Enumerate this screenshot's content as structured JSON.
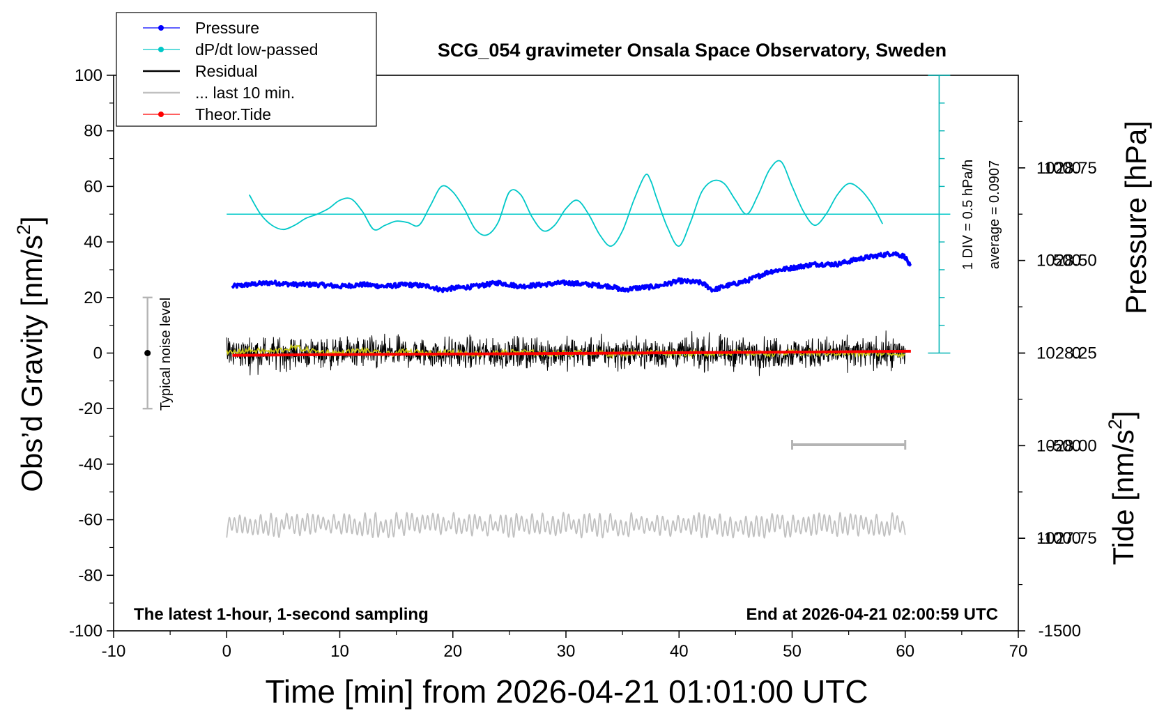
{
  "chart_data": {
    "type": "line",
    "title": "SCG_054 gravimeter Onsala Space Observatory, Sweden",
    "xlabel": "Time [min] from 2026-04-21 01:01:00 UTC",
    "ylabel_left_main": "Obs’d Gravity [nm/s",
    "ylabel_left_sup": "2",
    "ylabel_left_end": "]",
    "ylabel_right_pressure": "Pressure [hPa]",
    "ylabel_right_tide_main": "Tide [nm/s",
    "ylabel_right_tide_sup": "2",
    "ylabel_right_tide_end": "]",
    "xlim": [
      -10,
      70
    ],
    "ylim_gravity": [
      -100,
      100
    ],
    "ylim_pressure": [
      1027.5,
      1029.0
    ],
    "ylim_tide": [
      -1500,
      1500
    ],
    "x_ticks": [
      "-10",
      "0",
      "10",
      "20",
      "30",
      "40",
      "50",
      "60",
      "70"
    ],
    "x_tick_values": [
      -10,
      0,
      10,
      20,
      30,
      40,
      50,
      60,
      70
    ],
    "y_ticks_gravity": [
      "-100",
      "-80",
      "-60",
      "-40",
      "-20",
      "0",
      "20",
      "40",
      "60",
      "80",
      "100"
    ],
    "y_tick_values_gravity": [
      -100,
      -80,
      -60,
      -40,
      -20,
      0,
      20,
      40,
      60,
      80,
      100
    ],
    "y_ticks_pressure": [
      "1027.75",
      "1028.00",
      "1028.25",
      "1028.50",
      "1028.75"
    ],
    "y_tick_values_pressure": [
      1027.75,
      1028.0,
      1028.25,
      1028.5,
      1028.75
    ],
    "y_ticks_tide": [
      "-1500",
      "-1000",
      "-500",
      "0",
      "500",
      "1000"
    ],
    "y_tick_values_tide": [
      -1500,
      -1000,
      -500,
      0,
      500,
      1000
    ],
    "legend_position": "top-left",
    "legend": [
      {
        "label": "Pressure",
        "color": "#0000ff",
        "marker": "dot"
      },
      {
        "label": "dP/dt low-passed",
        "color": "#00c8c8",
        "marker": "dot"
      },
      {
        "label": "Residual",
        "color": "#000000",
        "marker": "none"
      },
      {
        "label": "... last 10 min.",
        "color": "#c0c0c0",
        "marker": "none"
      },
      {
        "label": "Theor.Tide",
        "color": "#ff0000",
        "marker": "dot"
      }
    ],
    "annotations": {
      "noise_label": "Typical noise level",
      "noise_range": [
        -20,
        20
      ],
      "noise_x": -7,
      "div_label": "1 DIV = 0.5 hPa/h",
      "average_label": "average = 0.0907",
      "bottom_left": "The latest 1-hour, 1-second sampling",
      "bottom_right": "End at 2026-04-21 02:00:59 UTC",
      "last10_bar_x": [
        50,
        60
      ],
      "last10_bar_gravity": -33,
      "dpdt_scale_x": 63,
      "dpdt_scale_range_gravity": [
        0,
        100
      ],
      "dpdt_zero_gravity": 50
    },
    "series": [
      {
        "name": "Pressure",
        "color": "#0000ff",
        "axis": "pressure",
        "x": [
          0.5,
          2,
          4,
          6,
          8,
          10,
          12,
          14,
          16,
          18,
          19,
          20,
          22,
          24,
          26,
          28,
          30,
          32,
          34,
          35,
          36,
          38,
          40,
          42,
          43,
          44,
          46,
          48,
          50,
          52,
          54,
          56,
          58,
          59,
          60,
          60.5
        ],
        "y": [
          1028.43,
          1028.435,
          1028.44,
          1028.435,
          1028.435,
          1028.43,
          1028.435,
          1028.43,
          1028.435,
          1028.43,
          1028.42,
          1028.425,
          1028.43,
          1028.44,
          1028.43,
          1028.435,
          1028.44,
          1028.435,
          1028.43,
          1028.42,
          1028.425,
          1028.43,
          1028.445,
          1028.44,
          1028.42,
          1028.43,
          1028.445,
          1028.47,
          1028.48,
          1028.49,
          1028.49,
          1028.505,
          1028.515,
          1028.52,
          1028.51,
          1028.48
        ]
      },
      {
        "name": "dP/dt low-passed",
        "color": "#00c8c8",
        "axis": "gravity",
        "x": [
          2,
          3,
          4,
          5,
          6,
          7,
          8,
          9,
          10,
          11,
          12,
          13,
          14,
          15,
          16,
          17,
          18,
          19,
          20,
          21,
          22,
          23,
          24,
          25,
          26,
          27,
          28,
          29,
          30,
          31,
          32,
          33,
          34,
          35,
          36,
          37,
          37.5,
          38,
          39,
          40,
          41,
          42,
          43,
          44,
          45,
          46,
          47,
          48,
          49,
          50,
          51,
          52,
          53,
          54,
          55,
          56,
          57,
          58
        ],
        "y": [
          57,
          50,
          46,
          44.5,
          46,
          48.5,
          50,
          52,
          55,
          55.5,
          51,
          44.5,
          46,
          47.5,
          47,
          46,
          53,
          60,
          58,
          52,
          44.5,
          42.5,
          47,
          58,
          57,
          49,
          44,
          46,
          52,
          55,
          50,
          42.5,
          38.5,
          44,
          55,
          64,
          62,
          56,
          45,
          38.5,
          47,
          58,
          62,
          61,
          55,
          50,
          57,
          66,
          69,
          60,
          51,
          46,
          50,
          57,
          61,
          59,
          54,
          46.5
        ]
      },
      {
        "name": "Residual",
        "color": "#000000",
        "axis": "gravity",
        "noise_amplitude": 5,
        "x": [
          0,
          60
        ],
        "y": [
          0,
          0
        ]
      },
      {
        "name": "Residual (smoothed)",
        "color": "#c8c814",
        "axis": "gravity",
        "x": [
          0,
          2,
          4,
          6,
          8,
          10,
          12,
          14,
          16,
          18,
          20,
          22,
          24,
          26,
          28,
          30,
          32,
          34,
          36,
          38,
          40,
          42,
          44,
          46,
          48,
          50,
          52,
          54,
          56,
          58,
          60
        ],
        "y": [
          0,
          1,
          0.5,
          2,
          0.5,
          0,
          1,
          -0.5,
          0.5,
          0,
          0.3,
          -0.3,
          0,
          0.5,
          -0.2,
          0,
          0.2,
          -0.3,
          0,
          0.3,
          0,
          -0.2,
          0.2,
          0,
          -0.2,
          0.1,
          0,
          0,
          -0.2,
          0,
          -0.5
        ]
      },
      {
        "name": "... last 10 min.",
        "color": "#c0c0c0",
        "axis": "gravity",
        "baseline": -62,
        "noise_amplitude": 4.5,
        "x": [
          0,
          60
        ],
        "y": [
          -62,
          -62
        ]
      },
      {
        "name": "Theor.Tide",
        "color": "#ff0000",
        "axis": "tide",
        "x": [
          0.5,
          10,
          20,
          30,
          40,
          50,
          60.5
        ],
        "y": [
          -12,
          -8,
          -5,
          -2,
          2,
          5,
          10
        ]
      }
    ]
  }
}
